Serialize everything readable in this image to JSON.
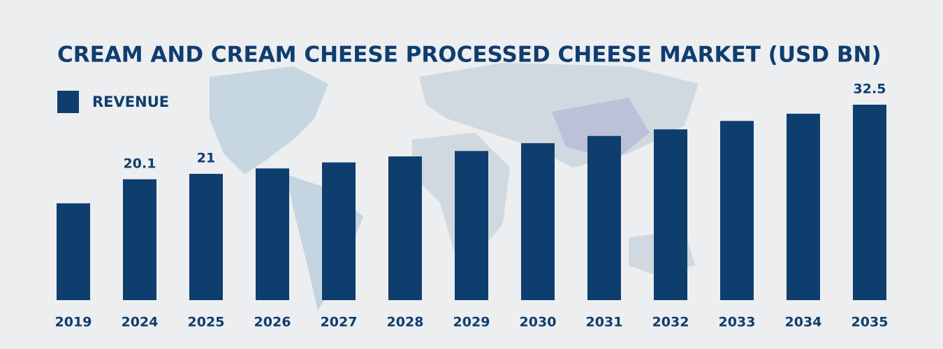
{
  "chart_data": {
    "type": "bar",
    "title": "CREAM AND CREAM CHEESE PROCESSED CHEESE MARKET (USD BN)",
    "legend": "REVENUE",
    "color": "#0e3e6e",
    "categories": [
      "2019",
      "2024",
      "2025",
      "2026",
      "2027",
      "2028",
      "2029",
      "2030",
      "2031",
      "2032",
      "2033",
      "2034",
      "2035"
    ],
    "values": [
      16.1,
      20.1,
      21,
      21.9,
      22.9,
      23.9,
      24.8,
      26.1,
      27.3,
      28.4,
      29.8,
      31.0,
      32.5
    ],
    "value_labels": [
      null,
      "20.1",
      "21",
      null,
      null,
      null,
      null,
      null,
      null,
      null,
      null,
      null,
      "32.5"
    ]
  }
}
